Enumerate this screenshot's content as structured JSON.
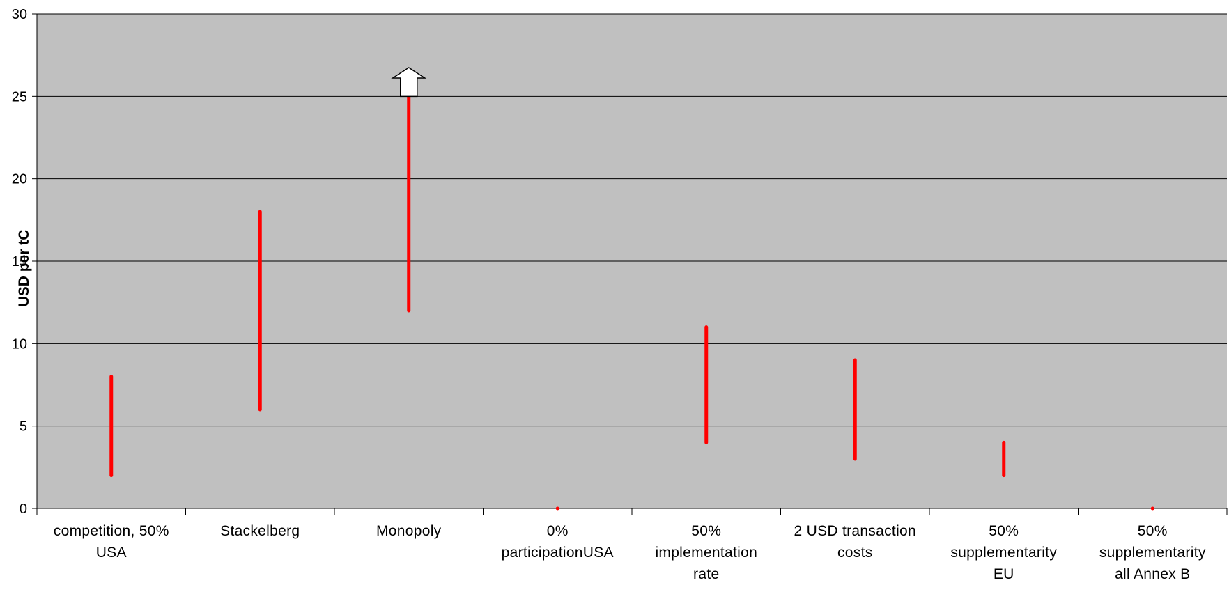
{
  "chart_data": {
    "type": "range",
    "title": "",
    "xlabel": "",
    "ylabel": "USD per tC",
    "ylim": [
      0,
      30
    ],
    "yticks": [
      0,
      5,
      10,
      15,
      20,
      25,
      30
    ],
    "grid": true,
    "categories": [
      [
        "competition, 50%",
        "USA"
      ],
      [
        "Stackelberg"
      ],
      [
        "Monopoly"
      ],
      [
        "0%",
        "participationUSA"
      ],
      [
        "50%",
        "implementation",
        "rate"
      ],
      [
        "2 USD transaction",
        "costs"
      ],
      [
        "50%",
        "supplementarity",
        "EU"
      ],
      [
        "50%",
        "supplementarity",
        "all Annex B"
      ]
    ],
    "ranges": [
      [
        2,
        8
      ],
      [
        6,
        18
      ],
      [
        12,
        25
      ],
      [
        0,
        0
      ],
      [
        4,
        11
      ],
      [
        3,
        9
      ],
      [
        2,
        4
      ],
      [
        0,
        0
      ]
    ],
    "overflow_marker": {
      "category_index": 2,
      "direction": "up"
    },
    "colors": {
      "plot_background": "#c0c0c0",
      "range_bar": "#ff0000",
      "gridline": "#000000"
    }
  }
}
